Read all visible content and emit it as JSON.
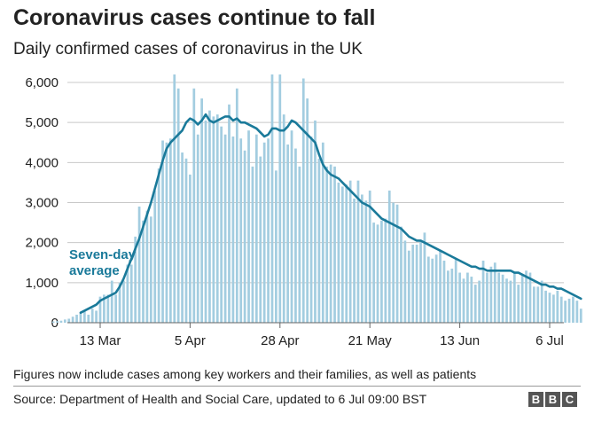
{
  "chart_data": {
    "type": "bar",
    "title": "Coronavirus cases continue to fall",
    "subtitle": "Daily confirmed cases of coronavirus in the UK",
    "start_date": "2020-03-01",
    "end_date": "2020-07-06",
    "ylim": [
      0,
      6000
    ],
    "yticks": [
      0,
      1000,
      2000,
      3000,
      4000,
      5000,
      6000
    ],
    "ytick_labels": [
      "0",
      "1,000",
      "2,000",
      "3,000",
      "4,000",
      "5,000",
      "6,000"
    ],
    "xticks": [
      {
        "date": "2020-03-13",
        "label": "13 Mar"
      },
      {
        "date": "2020-04-05",
        "label": "5 Apr"
      },
      {
        "date": "2020-04-28",
        "label": "28 Apr"
      },
      {
        "date": "2020-05-21",
        "label": "21 May"
      },
      {
        "date": "2020-06-13",
        "label": "13 Jun"
      },
      {
        "date": "2020-07-06",
        "label": "6 Jul"
      }
    ],
    "grid": true,
    "series": [
      {
        "type": "bar",
        "values": [
          30,
          40,
          50,
          80,
          100,
          150,
          200,
          250,
          300,
          200,
          350,
          300,
          650,
          700,
          700,
          1050,
          700,
          1000,
          1050,
          1450,
          1450,
          2150,
          2900,
          2550,
          2800,
          2650,
          3300,
          3850,
          4550,
          4500,
          4600,
          6200,
          5850,
          4250,
          4100,
          3700,
          5850,
          4700,
          5600,
          5050,
          5300,
          5150,
          5200,
          4900,
          4700,
          5450,
          4650,
          5850,
          4600,
          4300,
          4800,
          3900,
          4700,
          4150,
          4500,
          4600,
          6200,
          3800,
          6200,
          5200,
          4450,
          4800,
          4350,
          3900,
          6100,
          5600,
          4650,
          5050,
          4100,
          4500,
          3900,
          3950,
          3900,
          3500,
          3400,
          3450,
          3550,
          3100,
          3550,
          3200,
          3050,
          3300,
          2500,
          2450,
          2550,
          2600,
          3300,
          3000,
          2950,
          2400,
          2050,
          1800,
          1950,
          1950,
          2050,
          2250,
          1650,
          1600,
          1700,
          1800,
          1550,
          1300,
          1350,
          1600,
          1250,
          1100,
          1250,
          1150,
          950,
          1050,
          1550,
          1250,
          1400,
          1500,
          1250,
          1200,
          1100,
          1050,
          1250,
          950,
          1200,
          1300,
          1250,
          900,
          900,
          1050,
          800,
          750,
          700,
          800,
          650,
          550,
          600,
          650,
          550,
          350
        ]
      },
      {
        "type": "line",
        "start_date": "2020-03-08",
        "values": [
          250,
          300,
          350,
          400,
          450,
          550,
          600,
          650,
          700,
          750,
          900,
          1100,
          1350,
          1600,
          1850,
          2100,
          2400,
          2700,
          3000,
          3350,
          3700,
          4050,
          4350,
          4500,
          4600,
          4700,
          4800,
          5000,
          5100,
          5050,
          4950,
          5050,
          5200,
          5050,
          5000,
          5050,
          5100,
          5150,
          5150,
          5050,
          5100,
          5000,
          5000,
          4950,
          4900,
          4850,
          4750,
          4650,
          4700,
          4850,
          4850,
          4800,
          4800,
          4900,
          5050,
          5000,
          4900,
          4800,
          4700,
          4600,
          4500,
          4200,
          3950,
          3800,
          3700,
          3650,
          3600,
          3500,
          3400,
          3300,
          3200,
          3100,
          3000,
          2950,
          2900,
          2800,
          2700,
          2600,
          2550,
          2500,
          2450,
          2400,
          2350,
          2250,
          2150,
          2100,
          2050,
          2050,
          2000,
          1950,
          1900,
          1850,
          1800,
          1750,
          1700,
          1650,
          1600,
          1550,
          1500,
          1450,
          1400,
          1400,
          1350,
          1350,
          1300,
          1300,
          1300,
          1300,
          1300,
          1300,
          1300,
          1250,
          1250,
          1200,
          1150,
          1100,
          1050,
          1000,
          950,
          950,
          900,
          900,
          850,
          850,
          800,
          750,
          700,
          650,
          600
        ]
      }
    ],
    "annotations": [
      {
        "line1": "Seven-day",
        "line2": "average"
      }
    ],
    "colors": {
      "bar": "#a3cde0",
      "line": "#1a7a9a",
      "grid": "#c8c8c8",
      "axis": "#666666"
    }
  },
  "footer": {
    "note": "Figures now include cases among key workers and their families, as well as patients",
    "source": "Source: Department of Health and Social Care, updated to 6 Jul 09:00 BST",
    "logo": [
      "B",
      "B",
      "C"
    ]
  }
}
